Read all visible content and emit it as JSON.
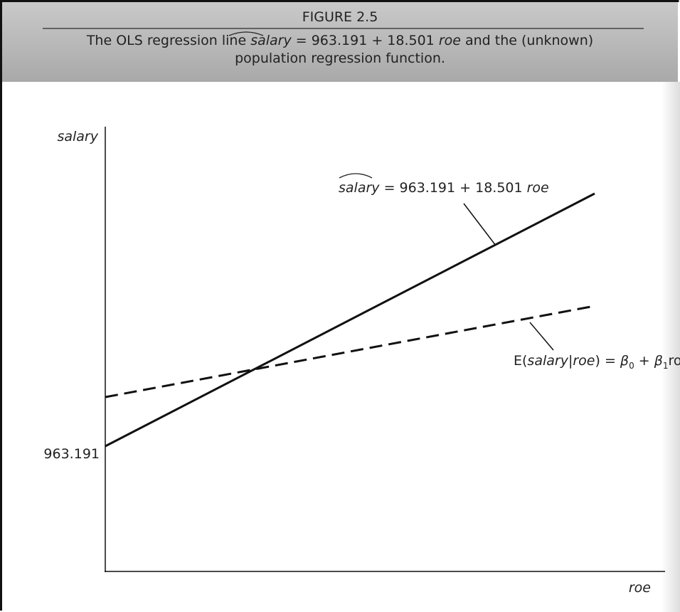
{
  "header": {
    "figure_label": "FIGURE 2.5",
    "caption_line1": [
      "The OLS regression line ",
      "salary",
      " = 963.191 + 18.501 ",
      "roe",
      " and the (unknown)"
    ],
    "caption_line2": "population regression function."
  },
  "axes": {
    "y_label": "salary",
    "x_label": "roe",
    "y_tick": "963.191"
  },
  "annotations": {
    "ols": [
      "salary",
      " = 963.191 + 18.501 ",
      "roe"
    ],
    "prf": [
      "E(",
      "salary",
      "|",
      "roe",
      ") = ",
      "β",
      "0",
      " + ",
      "β",
      "1",
      "roe"
    ]
  }
}
